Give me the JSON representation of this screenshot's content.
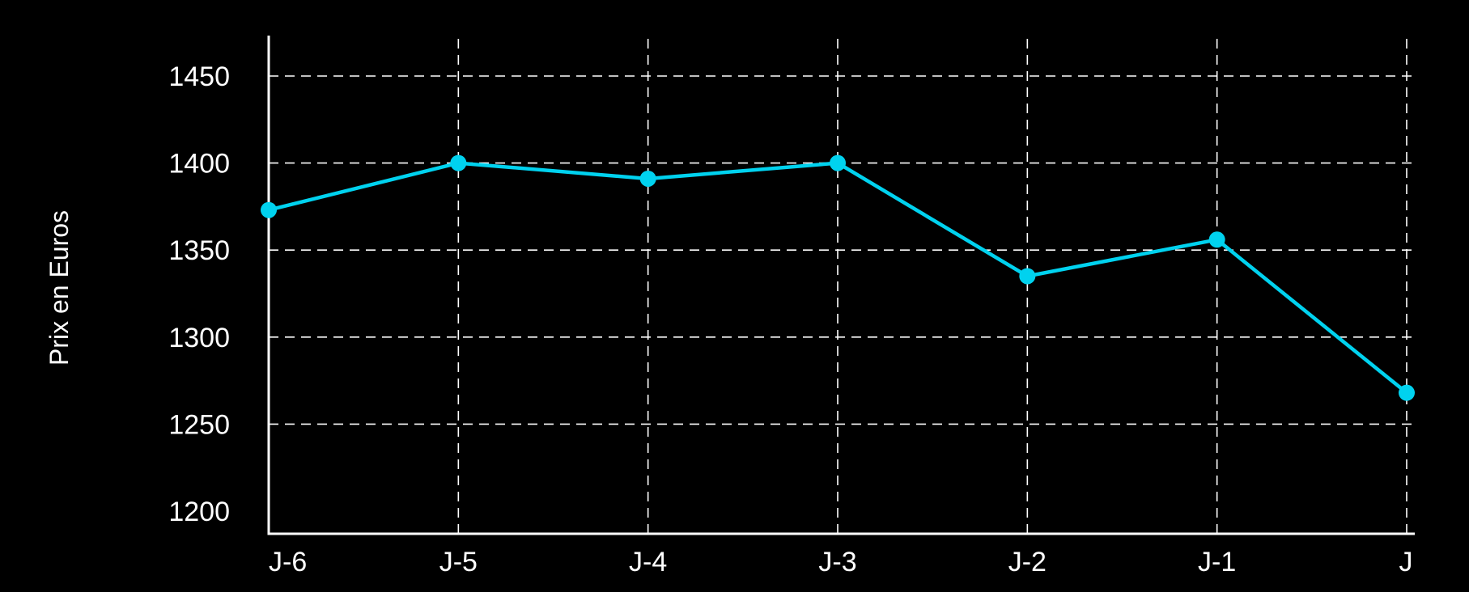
{
  "chart_data": {
    "type": "line",
    "title": "",
    "xlabel": "",
    "ylabel": "Prix en Euros",
    "categories": [
      "J-6",
      "J-5",
      "J-4",
      "J-3",
      "J-2",
      "J-1",
      "J"
    ],
    "series": [
      {
        "values": [
          1373,
          1400,
          1391,
          1400,
          1335,
          1356,
          1268
        ],
        "color": "#00d2ef"
      }
    ],
    "yticks": [
      1200,
      1250,
      1300,
      1350,
      1400,
      1450
    ],
    "ylim": [
      1200,
      1475
    ],
    "grid": true,
    "grid_style": "dashed",
    "legend": "none"
  },
  "colors": {
    "background": "#000000",
    "axis": "#ffffff",
    "grid": "#ffffff",
    "series": "#00d2ef"
  }
}
